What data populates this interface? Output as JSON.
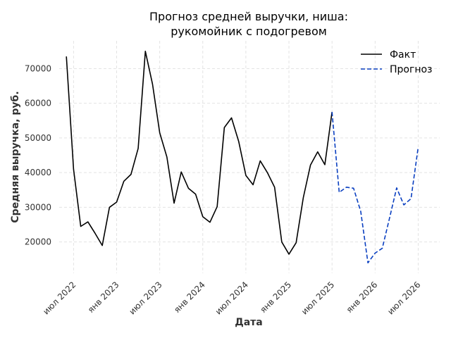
{
  "chart_data": {
    "type": "line",
    "title_lines": [
      "Прогноз средней выручки, ниша:",
      "рукомойник с подогревом"
    ],
    "xlabel": "Дата",
    "ylabel": "Средняя выручка, руб.",
    "x_tick_labels": [
      "июл 2022",
      "янв 2023",
      "июл 2023",
      "янв 2024",
      "июл 2024",
      "янв 2025",
      "июл 2025",
      "янв 2026",
      "июл 2026"
    ],
    "x_tick_dates": [
      "2022-07",
      "2023-01",
      "2023-07",
      "2024-01",
      "2024-07",
      "2025-01",
      "2025-07",
      "2026-01",
      "2026-07"
    ],
    "xlim": [
      "2022-05",
      "2026-10"
    ],
    "y_ticks": [
      20000,
      30000,
      40000,
      50000,
      60000,
      70000
    ],
    "y_tick_labels": [
      "20000",
      "30000",
      "40000",
      "50000",
      "60000",
      "70000"
    ],
    "ylim": [
      11000,
      78000
    ],
    "grid": true,
    "legend_position": "top-right",
    "series": [
      {
        "name": "Факт",
        "color": "#000000",
        "style": "solid",
        "points": [
          [
            "2022-06",
            73500
          ],
          [
            "2022-07",
            41000
          ],
          [
            "2022-08",
            24500
          ],
          [
            "2022-09",
            25800
          ],
          [
            "2022-10",
            22500
          ],
          [
            "2022-11",
            19000
          ],
          [
            "2022-12",
            30000
          ],
          [
            "2023-01",
            31500
          ],
          [
            "2023-02",
            37500
          ],
          [
            "2023-03",
            39500
          ],
          [
            "2023-04",
            47000
          ],
          [
            "2023-05",
            75000
          ],
          [
            "2023-06",
            65500
          ],
          [
            "2023-07",
            51500
          ],
          [
            "2023-08",
            44500
          ],
          [
            "2023-09",
            31200
          ],
          [
            "2023-10",
            40200
          ],
          [
            "2023-11",
            35500
          ],
          [
            "2023-12",
            33800
          ],
          [
            "2024-01",
            27300
          ],
          [
            "2024-02",
            25700
          ],
          [
            "2024-03",
            30200
          ],
          [
            "2024-04",
            53000
          ],
          [
            "2024-05",
            55800
          ],
          [
            "2024-06",
            49000
          ],
          [
            "2024-07",
            39200
          ],
          [
            "2024-08",
            36500
          ],
          [
            "2024-09",
            43400
          ],
          [
            "2024-10",
            40000
          ],
          [
            "2024-11",
            35800
          ],
          [
            "2024-12",
            20000
          ],
          [
            "2025-01",
            16500
          ],
          [
            "2025-02",
            19800
          ],
          [
            "2025-03",
            32800
          ],
          [
            "2025-04",
            42200
          ],
          [
            "2025-05",
            46000
          ],
          [
            "2025-06",
            42300
          ],
          [
            "2025-07",
            57500
          ]
        ]
      },
      {
        "name": "Прогноз",
        "color": "#0a3fc0",
        "style": "dashed",
        "points": [
          [
            "2025-07",
            57500
          ],
          [
            "2025-08",
            34300
          ],
          [
            "2025-09",
            35800
          ],
          [
            "2025-10",
            35500
          ],
          [
            "2025-11",
            28800
          ],
          [
            "2025-12",
            14000
          ],
          [
            "2026-01",
            16800
          ],
          [
            "2026-02",
            18200
          ],
          [
            "2026-03",
            26800
          ],
          [
            "2026-04",
            35600
          ],
          [
            "2026-05",
            30700
          ],
          [
            "2026-06",
            32500
          ],
          [
            "2026-07",
            47300
          ]
        ]
      }
    ]
  }
}
